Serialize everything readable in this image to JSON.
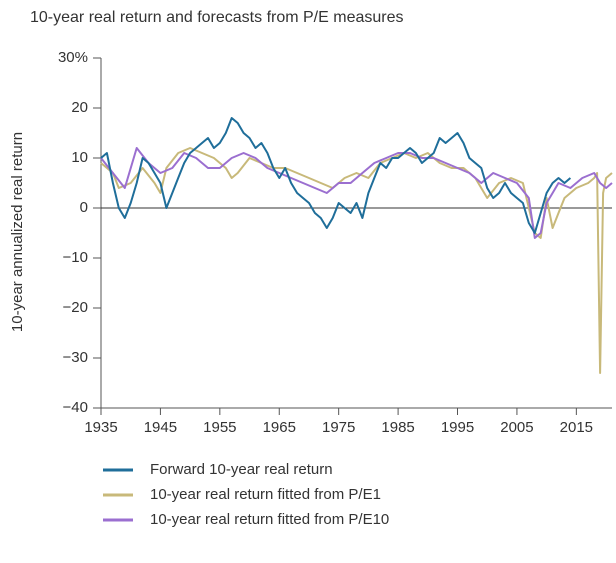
{
  "chart_data": {
    "type": "line",
    "title": "10-year real return and forecasts from P/E measures",
    "y_label": "10-year annualized real return",
    "xlim": [
      1935,
      2021
    ],
    "xticks": [
      1935,
      1945,
      1955,
      1965,
      1975,
      1985,
      1995,
      2005,
      2015
    ],
    "ylim": [
      -40,
      30
    ],
    "yticks": [
      {
        "value": -40,
        "label": "−40"
      },
      {
        "value": -30,
        "label": "−30"
      },
      {
        "value": -20,
        "label": "−20"
      },
      {
        "value": -10,
        "label": "−10"
      },
      0,
      10,
      20,
      {
        "value": 30,
        "label": "30%"
      }
    ],
    "series": [
      {
        "name": "Forward 10-year real return",
        "color": "#1f6e9a",
        "x": [
          1935,
          1936,
          1937,
          1938,
          1939,
          1940,
          1941,
          1942,
          1943,
          1944,
          1945,
          1946,
          1947,
          1948,
          1949,
          1950,
          1951,
          1952,
          1953,
          1954,
          1955,
          1956,
          1957,
          1958,
          1959,
          1960,
          1961,
          1962,
          1963,
          1964,
          1965,
          1966,
          1967,
          1968,
          1969,
          1970,
          1971,
          1972,
          1973,
          1974,
          1975,
          1976,
          1977,
          1978,
          1979,
          1980,
          1981,
          1982,
          1983,
          1984,
          1985,
          1986,
          1987,
          1988,
          1989,
          1990,
          1991,
          1992,
          1993,
          1994,
          1995,
          1996,
          1997,
          1998,
          1999,
          2000,
          2001,
          2002,
          2003,
          2004,
          2005,
          2006,
          2007,
          2008,
          2009,
          2010,
          2011,
          2012,
          2013,
          2014
        ],
        "values": [
          10,
          11,
          5,
          0,
          -2,
          1,
          5,
          10,
          9,
          7,
          5,
          0,
          3,
          6,
          9,
          11,
          12,
          13,
          14,
          12,
          13,
          15,
          18,
          17,
          15,
          14,
          12,
          13,
          11,
          8,
          6,
          8,
          5,
          3,
          2,
          1,
          -1,
          -2,
          -4,
          -2,
          1,
          0,
          -1,
          1,
          -2,
          3,
          6,
          9,
          8,
          10,
          10,
          11,
          12,
          11,
          9,
          10,
          11,
          14,
          13,
          14,
          15,
          13,
          10,
          9,
          8,
          4,
          2,
          3,
          5,
          3,
          2,
          1,
          -3,
          -5,
          -1,
          3,
          5,
          6,
          5,
          6
        ]
      },
      {
        "name": "10-year real return fitted from P/E1",
        "color": "#c8b97a",
        "x": [
          1935,
          1937,
          1938,
          1940,
          1942,
          1944,
          1945,
          1946,
          1948,
          1950,
          1952,
          1954,
          1956,
          1957,
          1958,
          1960,
          1962,
          1964,
          1966,
          1968,
          1970,
          1972,
          1974,
          1976,
          1978,
          1980,
          1982,
          1984,
          1986,
          1988,
          1990,
          1992,
          1994,
          1996,
          1998,
          2000,
          2002,
          2004,
          2006,
          2008,
          2009,
          2010,
          2011,
          2012,
          2013,
          2015,
          2017,
          2018,
          2018.5,
          2019,
          2019.5,
          2020,
          2021
        ],
        "values": [
          9,
          7,
          4,
          5,
          8,
          5,
          3,
          8,
          11,
          12,
          11,
          10,
          8,
          6,
          7,
          10,
          9,
          8,
          8,
          7,
          6,
          5,
          4,
          6,
          7,
          6,
          9,
          10,
          11,
          10,
          11,
          9,
          8,
          8,
          6,
          2,
          5,
          6,
          5,
          -5,
          -6,
          2,
          -4,
          -1,
          2,
          4,
          5,
          6,
          7,
          -33,
          3,
          6,
          7
        ]
      },
      {
        "name": "10-year real return fitted from P/E10",
        "color": "#9b6fd0",
        "x": [
          1935,
          1937,
          1939,
          1941,
          1943,
          1945,
          1947,
          1949,
          1951,
          1953,
          1955,
          1957,
          1959,
          1961,
          1963,
          1965,
          1967,
          1969,
          1971,
          1973,
          1975,
          1977,
          1979,
          1981,
          1983,
          1985,
          1987,
          1989,
          1991,
          1993,
          1995,
          1997,
          1999,
          2001,
          2003,
          2005,
          2007,
          2008,
          2009,
          2010,
          2011,
          2012,
          2014,
          2016,
          2018,
          2019,
          2020,
          2021
        ],
        "values": [
          10,
          7,
          4,
          12,
          9,
          7,
          8,
          11,
          10,
          8,
          8,
          10,
          11,
          10,
          8,
          7,
          6,
          5,
          4,
          3,
          5,
          5,
          7,
          9,
          10,
          11,
          11,
          10,
          10,
          9,
          8,
          7,
          5,
          7,
          6,
          5,
          2,
          -6,
          -5,
          1,
          3,
          5,
          4,
          6,
          7,
          5,
          4,
          5
        ]
      }
    ]
  }
}
